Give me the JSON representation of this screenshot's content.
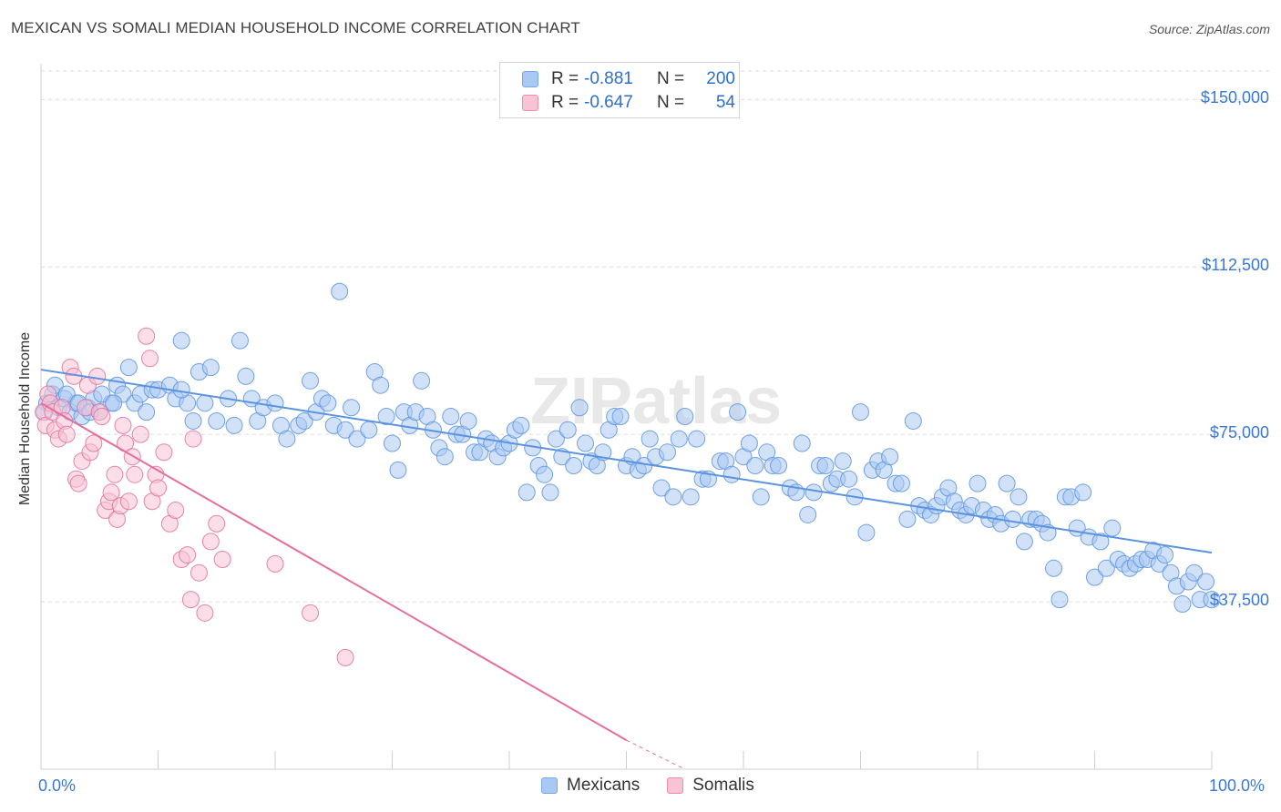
{
  "title": "MEXICAN VS SOMALI MEDIAN HOUSEHOLD INCOME CORRELATION CHART",
  "source": "Source: ZipAtlas.com",
  "watermark": "ZIPatlas",
  "legend": {
    "rows": [
      {
        "r_label": "R =",
        "r_value": "-0.881",
        "n_label": "N =",
        "n_value": "200",
        "color": "#a9c9f3",
        "border": "#7aa8e6"
      },
      {
        "r_label": "R =",
        "r_value": "-0.647",
        "n_label": "N =",
        "n_value": "54",
        "color": "#f8c3d4",
        "border": "#ea8fb0"
      }
    ]
  },
  "bottom_legend": [
    {
      "label": "Mexicans",
      "color": "#a9c9f3",
      "border": "#7aa8e6"
    },
    {
      "label": "Somalis",
      "color": "#f8c3d4",
      "border": "#ea8fb0"
    }
  ],
  "chart_data": {
    "type": "scatter",
    "title": "MEXICAN VS SOMALI MEDIAN HOUSEHOLD INCOME CORRELATION CHART",
    "xlabel": "",
    "ylabel": "Median Household Income",
    "xlim": [
      0,
      100
    ],
    "ylim": [
      0,
      157000
    ],
    "x_ticks": [
      "0.0%",
      "100.0%"
    ],
    "y_ticks": [
      {
        "value": 37500,
        "label": "$37,500"
      },
      {
        "value": 75000,
        "label": "$75,000"
      },
      {
        "value": 112500,
        "label": "$112,500"
      },
      {
        "value": 150000,
        "label": "$150,000"
      }
    ],
    "grid": true,
    "legend_position": "top-center",
    "series": [
      {
        "name": "Mexicans",
        "color": "#5b93e0",
        "fill": "#a9c9f3",
        "trend": {
          "x0": 0,
          "y0": 89500,
          "x1": 100,
          "y1": 48500
        },
        "points": [
          [
            0.5,
            82000
          ],
          [
            1,
            84000
          ],
          [
            1.5,
            81000
          ],
          [
            2,
            83000
          ],
          [
            2.5,
            80000
          ],
          [
            3,
            82000
          ],
          [
            3.5,
            79000
          ],
          [
            4,
            81000
          ],
          [
            4.5,
            83000
          ],
          [
            5,
            80000
          ],
          [
            6,
            82000
          ],
          [
            6.5,
            86000
          ],
          [
            7,
            84000
          ],
          [
            7.5,
            90000
          ],
          [
            8,
            82000
          ],
          [
            8.5,
            84000
          ],
          [
            9,
            80000
          ],
          [
            9.5,
            85000
          ],
          [
            10,
            85000
          ],
          [
            11,
            86000
          ],
          [
            11.5,
            83000
          ],
          [
            12,
            96000
          ],
          [
            12.5,
            82000
          ],
          [
            13,
            78000
          ],
          [
            13.5,
            89000
          ],
          [
            14,
            82000
          ],
          [
            14.5,
            90000
          ],
          [
            15,
            78000
          ],
          [
            16,
            83000
          ],
          [
            16.5,
            77000
          ],
          [
            17,
            96000
          ],
          [
            17.5,
            88000
          ],
          [
            18,
            83000
          ],
          [
            18.5,
            78000
          ],
          [
            19,
            81000
          ],
          [
            20,
            82000
          ],
          [
            20.5,
            77000
          ],
          [
            21,
            74000
          ],
          [
            22,
            77000
          ],
          [
            22.5,
            78000
          ],
          [
            23,
            87000
          ],
          [
            23.5,
            80000
          ],
          [
            24,
            83000
          ],
          [
            24.5,
            82000
          ],
          [
            25,
            77000
          ],
          [
            25.5,
            107000
          ],
          [
            26,
            76000
          ],
          [
            26.5,
            81000
          ],
          [
            27,
            74000
          ],
          [
            28,
            76000
          ],
          [
            28.5,
            89000
          ],
          [
            29,
            86000
          ],
          [
            29.5,
            79000
          ],
          [
            30,
            73000
          ],
          [
            30.5,
            67000
          ],
          [
            31,
            80000
          ],
          [
            31.5,
            77000
          ],
          [
            32,
            80000
          ],
          [
            32.5,
            87000
          ],
          [
            33,
            79000
          ],
          [
            33.5,
            76000
          ],
          [
            34,
            72000
          ],
          [
            34.5,
            70000
          ],
          [
            35,
            79000
          ],
          [
            35.5,
            75000
          ],
          [
            36,
            75000
          ],
          [
            36.5,
            78000
          ],
          [
            37,
            71000
          ],
          [
            37.5,
            71000
          ],
          [
            38,
            74000
          ],
          [
            38.5,
            73000
          ],
          [
            39,
            70000
          ],
          [
            39.5,
            72000
          ],
          [
            40,
            73000
          ],
          [
            40.5,
            76000
          ],
          [
            41,
            77000
          ],
          [
            41.5,
            62000
          ],
          [
            42,
            72000
          ],
          [
            42.5,
            68000
          ],
          [
            43,
            66000
          ],
          [
            43.5,
            62000
          ],
          [
            44,
            74000
          ],
          [
            44.5,
            70000
          ],
          [
            45,
            76000
          ],
          [
            45.5,
            68000
          ],
          [
            46,
            81000
          ],
          [
            46.5,
            73000
          ],
          [
            47,
            69000
          ],
          [
            47.5,
            68000
          ],
          [
            48,
            71000
          ],
          [
            48.5,
            76000
          ],
          [
            49,
            79000
          ],
          [
            49.5,
            79000
          ],
          [
            50,
            68000
          ],
          [
            50.5,
            70000
          ],
          [
            51,
            67000
          ],
          [
            51.5,
            68000
          ],
          [
            52,
            74000
          ],
          [
            52.5,
            70000
          ],
          [
            53,
            63000
          ],
          [
            53.5,
            71000
          ],
          [
            54,
            61000
          ],
          [
            54.5,
            74000
          ],
          [
            55,
            79000
          ],
          [
            55.5,
            61000
          ],
          [
            56,
            74000
          ],
          [
            56.5,
            65000
          ],
          [
            57,
            65000
          ],
          [
            58,
            69000
          ],
          [
            58.5,
            69000
          ],
          [
            59,
            66000
          ],
          [
            59.5,
            80000
          ],
          [
            60,
            70000
          ],
          [
            60.5,
            73000
          ],
          [
            61,
            68000
          ],
          [
            61.5,
            61000
          ],
          [
            62,
            71000
          ],
          [
            62.5,
            68000
          ],
          [
            63,
            68000
          ],
          [
            64,
            63000
          ],
          [
            64.5,
            62000
          ],
          [
            65,
            73000
          ],
          [
            65.5,
            57000
          ],
          [
            66,
            62000
          ],
          [
            66.5,
            68000
          ],
          [
            67,
            68000
          ],
          [
            67.5,
            64000
          ],
          [
            68,
            65000
          ],
          [
            68.5,
            69000
          ],
          [
            69,
            65000
          ],
          [
            69.5,
            61000
          ],
          [
            70,
            80000
          ],
          [
            70.5,
            53000
          ],
          [
            71,
            67000
          ],
          [
            71.5,
            69000
          ],
          [
            72,
            67000
          ],
          [
            72.5,
            70000
          ],
          [
            73,
            64000
          ],
          [
            73.5,
            64000
          ],
          [
            74,
            56000
          ],
          [
            74.5,
            78000
          ],
          [
            75,
            59000
          ],
          [
            75.5,
            58000
          ],
          [
            76,
            57000
          ],
          [
            76.5,
            59000
          ],
          [
            77,
            61000
          ],
          [
            77.5,
            63000
          ],
          [
            78,
            60000
          ],
          [
            78.5,
            58000
          ],
          [
            79,
            57000
          ],
          [
            79.5,
            59000
          ],
          [
            80,
            64000
          ],
          [
            80.5,
            58000
          ],
          [
            81,
            56000
          ],
          [
            81.5,
            57000
          ],
          [
            82,
            55000
          ],
          [
            82.5,
            64000
          ],
          [
            83,
            56000
          ],
          [
            83.5,
            61000
          ],
          [
            84,
            51000
          ],
          [
            84.5,
            56000
          ],
          [
            85,
            56000
          ],
          [
            85.5,
            55000
          ],
          [
            86,
            53000
          ],
          [
            86.5,
            45000
          ],
          [
            87,
            38000
          ],
          [
            87.5,
            61000
          ],
          [
            88,
            61000
          ],
          [
            88.5,
            54000
          ],
          [
            89,
            62000
          ],
          [
            89.5,
            52000
          ],
          [
            90,
            43000
          ],
          [
            90.5,
            51000
          ],
          [
            91,
            45000
          ],
          [
            91.5,
            54000
          ],
          [
            92,
            47000
          ],
          [
            92.5,
            46000
          ],
          [
            93,
            45000
          ],
          [
            93.5,
            46000
          ],
          [
            94,
            47000
          ],
          [
            94.5,
            47000
          ],
          [
            95,
            49000
          ],
          [
            95.5,
            46000
          ],
          [
            96,
            48000
          ],
          [
            96.5,
            44000
          ],
          [
            97,
            41000
          ],
          [
            97.5,
            37000
          ],
          [
            98,
            42000
          ],
          [
            98.5,
            44000
          ],
          [
            99,
            38000
          ],
          [
            99.5,
            42000
          ],
          [
            100,
            38000
          ],
          [
            0.3,
            80000
          ],
          [
            1.2,
            86000
          ],
          [
            2.2,
            84000
          ],
          [
            3.2,
            82000
          ],
          [
            4.2,
            80000
          ],
          [
            5.2,
            84000
          ],
          [
            6.2,
            82000
          ],
          [
            12,
            85000
          ]
        ]
      },
      {
        "name": "Somalis",
        "color": "#e46e9c",
        "fill": "#f8c3d4",
        "trend": {
          "x0": 0,
          "y0": 82000,
          "x1": 50,
          "y1": 6500
        },
        "trend_dashed": {
          "x0": 50,
          "y0": 6500,
          "x1": 55,
          "y1": -1000
        },
        "points": [
          [
            0.2,
            80000
          ],
          [
            0.4,
            77000
          ],
          [
            0.6,
            84000
          ],
          [
            0.8,
            82000
          ],
          [
            1,
            80000
          ],
          [
            1.2,
            76000
          ],
          [
            1.5,
            74000
          ],
          [
            1.8,
            81000
          ],
          [
            2,
            78000
          ],
          [
            2.2,
            75000
          ],
          [
            2.5,
            90000
          ],
          [
            2.8,
            88000
          ],
          [
            3,
            65000
          ],
          [
            3.2,
            64000
          ],
          [
            3.5,
            69000
          ],
          [
            3.8,
            81000
          ],
          [
            4,
            86000
          ],
          [
            4.2,
            71000
          ],
          [
            4.5,
            73000
          ],
          [
            4.8,
            88000
          ],
          [
            5,
            80000
          ],
          [
            5.2,
            79000
          ],
          [
            5.5,
            58000
          ],
          [
            5.8,
            60000
          ],
          [
            6,
            62000
          ],
          [
            6.3,
            66000
          ],
          [
            6.5,
            56000
          ],
          [
            6.8,
            59000
          ],
          [
            7,
            77000
          ],
          [
            7.2,
            73000
          ],
          [
            7.5,
            60000
          ],
          [
            7.8,
            70000
          ],
          [
            8,
            66000
          ],
          [
            8.5,
            75000
          ],
          [
            9,
            97000
          ],
          [
            9.3,
            92000
          ],
          [
            9.5,
            60000
          ],
          [
            9.8,
            66000
          ],
          [
            10,
            63000
          ],
          [
            10.5,
            71000
          ],
          [
            11,
            55000
          ],
          [
            11.5,
            58000
          ],
          [
            12,
            47000
          ],
          [
            12.5,
            48000
          ],
          [
            12.8,
            38000
          ],
          [
            13,
            74000
          ],
          [
            13.5,
            44000
          ],
          [
            14,
            35000
          ],
          [
            14.5,
            51000
          ],
          [
            15,
            55000
          ],
          [
            15.5,
            47000
          ],
          [
            20,
            46000
          ],
          [
            23,
            35000
          ],
          [
            26,
            25000
          ]
        ]
      }
    ]
  }
}
